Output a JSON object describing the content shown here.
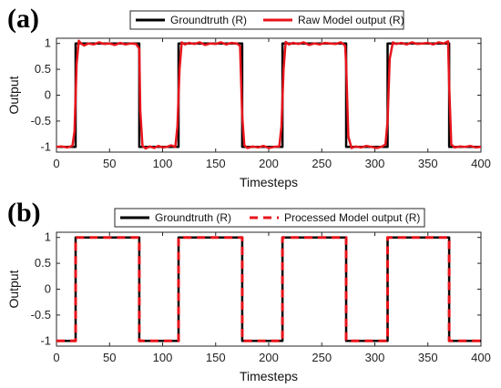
{
  "chart_data": [
    {
      "type": "line",
      "panel_label": "(a)",
      "xlabel": "Timesteps",
      "ylabel": "Output",
      "xlim": [
        0,
        400
      ],
      "ylim": [
        -1.1,
        1.1
      ],
      "xticks": [
        0,
        50,
        100,
        150,
        200,
        250,
        300,
        350,
        400
      ],
      "yticks": [
        1,
        0.5,
        0,
        -0.5,
        -1
      ],
      "ytick_labels": [
        "1",
        "0.5",
        "0",
        "-0.5",
        "-1"
      ],
      "legend_position": "top",
      "grid": false,
      "series": [
        {
          "name": "Groundtruth (R)",
          "color": "#000000",
          "style": "solid",
          "x": [
            0,
            18,
            18,
            78,
            78,
            115,
            115,
            175,
            175,
            213,
            213,
            273,
            273,
            312,
            312,
            370,
            370,
            400
          ],
          "y": [
            -1,
            -1,
            1,
            1,
            -1,
            -1,
            1,
            1,
            -1,
            -1,
            1,
            1,
            -1,
            -1,
            1,
            1,
            -1,
            -1
          ]
        },
        {
          "name": "Raw Model output (R)",
          "color": "#e8141c",
          "style": "solid",
          "x": [
            0,
            5,
            10,
            15,
            17,
            19,
            21,
            23,
            26,
            30,
            35,
            40,
            45,
            50,
            55,
            60,
            65,
            70,
            75,
            78,
            79,
            81,
            84,
            88,
            92,
            96,
            100,
            104,
            108,
            112,
            114,
            116,
            118,
            121,
            125,
            130,
            135,
            140,
            145,
            150,
            155,
            160,
            165,
            170,
            173,
            175,
            177,
            180,
            185,
            190,
            195,
            200,
            205,
            210,
            212,
            214,
            216,
            219,
            223,
            228,
            233,
            238,
            243,
            248,
            253,
            258,
            263,
            268,
            272,
            273,
            275,
            278,
            282,
            287,
            292,
            297,
            302,
            307,
            310,
            312,
            314,
            317,
            320,
            325,
            330,
            335,
            340,
            345,
            350,
            355,
            360,
            365,
            369,
            370,
            372,
            375,
            380,
            385,
            390,
            395,
            400
          ],
          "y": [
            -1.0,
            -0.99,
            -1.01,
            -0.98,
            -0.7,
            0.6,
            1.05,
            1.0,
            0.96,
            1.0,
            0.98,
            1.02,
            0.99,
            1.0,
            0.97,
            1.01,
            0.98,
            1.0,
            0.99,
            0.9,
            -0.3,
            -0.98,
            -1.03,
            -0.99,
            -1.02,
            -0.98,
            -1.01,
            -1.0,
            -0.97,
            -1.0,
            -0.6,
            0.5,
            1.02,
            0.98,
            1.01,
            0.99,
            1.02,
            0.97,
            1.0,
            0.99,
            1.02,
            0.98,
            1.01,
            1.0,
            0.95,
            -0.4,
            -0.97,
            -1.02,
            -0.99,
            -1.01,
            -0.98,
            -1.02,
            -1.0,
            -0.99,
            -0.6,
            0.5,
            1.03,
            0.98,
            1.01,
            0.99,
            1.02,
            0.97,
            1.0,
            0.98,
            1.01,
            1.0,
            0.99,
            1.02,
            0.96,
            0.6,
            -0.8,
            -1.02,
            -0.99,
            -1.01,
            -0.98,
            -1.0,
            -1.02,
            -0.99,
            -0.95,
            -0.5,
            0.7,
            1.02,
            0.99,
            1.01,
            0.98,
            1.02,
            0.99,
            1.0,
            1.01,
            0.98,
            1.02,
            1.0,
            1.04,
            0.2,
            -0.95,
            -1.01,
            -0.99,
            -1.0,
            -0.98,
            -1.01,
            -1.0
          ]
        }
      ]
    },
    {
      "type": "line",
      "panel_label": "(b)",
      "xlabel": "Timesteps",
      "ylabel": "Output",
      "xlim": [
        0,
        400
      ],
      "ylim": [
        -1.1,
        1.1
      ],
      "xticks": [
        0,
        50,
        100,
        150,
        200,
        250,
        300,
        350,
        400
      ],
      "yticks": [
        1,
        0.5,
        0,
        -0.5,
        -1
      ],
      "ytick_labels": [
        "1",
        "0.5",
        "0",
        "-0.5",
        "-1"
      ],
      "legend_position": "top",
      "grid": false,
      "series": [
        {
          "name": "Groundtruth (R)",
          "color": "#000000",
          "style": "solid",
          "x": [
            0,
            18,
            18,
            78,
            78,
            115,
            115,
            175,
            175,
            213,
            213,
            273,
            273,
            312,
            312,
            370,
            370,
            400
          ],
          "y": [
            -1,
            -1,
            1,
            1,
            -1,
            -1,
            1,
            1,
            -1,
            -1,
            1,
            1,
            -1,
            -1,
            1,
            1,
            -1,
            -1
          ]
        },
        {
          "name": "Processed Model output (R)",
          "color": "#e8141c",
          "style": "dashed",
          "x": [
            0,
            18,
            18,
            78,
            78,
            115,
            115,
            175,
            175,
            213,
            213,
            273,
            273,
            312,
            312,
            370,
            370,
            400
          ],
          "y": [
            -1,
            -1,
            1,
            1,
            -1,
            -1,
            1,
            1,
            -1,
            -1,
            1,
            1,
            -1,
            -1,
            1,
            1,
            -1,
            -1
          ]
        }
      ]
    }
  ]
}
